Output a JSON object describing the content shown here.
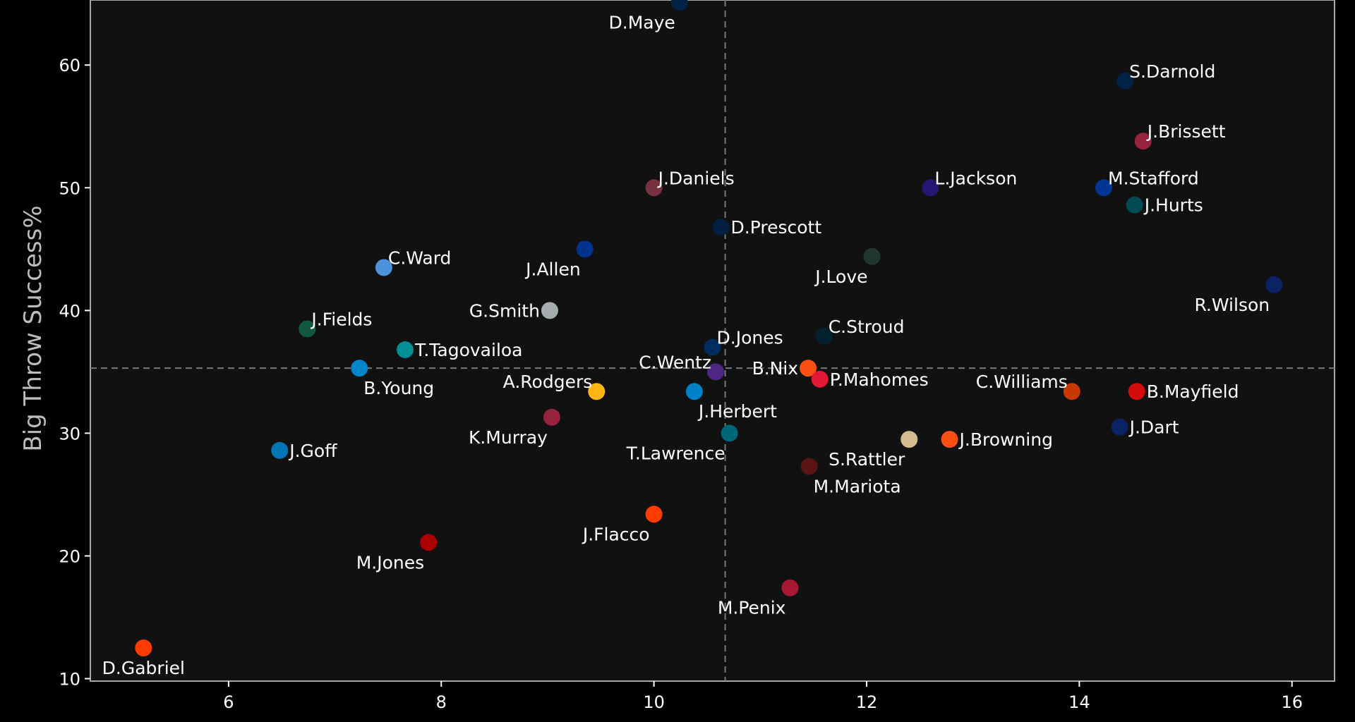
{
  "chart_data": {
    "type": "scatter",
    "title": "",
    "xlabel": "",
    "ylabel": "Big Throw Success%",
    "xlim": [
      4.7,
      16.4
    ],
    "ylim": [
      9.8,
      65.3
    ],
    "xticks": [
      6,
      8,
      10,
      12,
      14,
      16
    ],
    "yticks": [
      10,
      20,
      30,
      40,
      50,
      60
    ],
    "reference_lines": {
      "x": 10.67,
      "y": 35.3
    },
    "grid": false,
    "colors": {
      "background": "#000000",
      "plot_background": "#111111",
      "reference_line": "#777777"
    },
    "points": [
      {
        "label": "D.Maye",
        "x": 10.24,
        "y": 65.1,
        "color": "#002244",
        "label_pos": "bl"
      },
      {
        "label": "S.Darnold",
        "x": 14.43,
        "y": 58.7,
        "color": "#002244",
        "label_pos": "tr"
      },
      {
        "label": "J.Brissett",
        "x": 14.6,
        "y": 53.8,
        "color": "#97233F",
        "label_pos": "tr"
      },
      {
        "label": "J.Daniels",
        "x": 10.0,
        "y": 50.0,
        "color": "#773141",
        "label_pos": "tr"
      },
      {
        "label": "L.Jackson",
        "x": 12.6,
        "y": 50.0,
        "color": "#241773",
        "label_pos": "tr"
      },
      {
        "label": "M.Stafford",
        "x": 14.23,
        "y": 50.0,
        "color": "#003594",
        "label_pos": "tr"
      },
      {
        "label": "J.Hurts",
        "x": 14.52,
        "y": 48.6,
        "color": "#004C54",
        "label_pos": "r"
      },
      {
        "label": "D.Prescott",
        "x": 10.63,
        "y": 46.8,
        "color": "#041E42",
        "label_pos": "r"
      },
      {
        "label": "J.Allen",
        "x": 9.35,
        "y": 45.0,
        "color": "#00338D",
        "label_pos": "bl"
      },
      {
        "label": "J.Love",
        "x": 12.05,
        "y": 44.4,
        "color": "#203731",
        "label_pos": "bl"
      },
      {
        "label": "C.Ward",
        "x": 7.46,
        "y": 43.5,
        "color": "#4B92DB",
        "label_pos": "tr"
      },
      {
        "label": "R.Wilson",
        "x": 15.83,
        "y": 42.1,
        "color": "#0B2265",
        "label_pos": "bl"
      },
      {
        "label": "G.Smith",
        "x": 9.02,
        "y": 40.0,
        "color": "#A5ACAF",
        "label_pos": "l"
      },
      {
        "label": "J.Fields",
        "x": 6.74,
        "y": 38.5,
        "color": "#125740",
        "label_pos": "tr"
      },
      {
        "label": "C.Stroud",
        "x": 11.6,
        "y": 37.9,
        "color": "#03202F",
        "label_pos": "tr"
      },
      {
        "label": "D.Jones",
        "x": 10.55,
        "y": 37.0,
        "color": "#002C5F",
        "label_pos": "tr"
      },
      {
        "label": "T.Tagovailoa",
        "x": 7.66,
        "y": 36.8,
        "color": "#008E97",
        "label_pos": "r"
      },
      {
        "label": "B.Young",
        "x": 7.23,
        "y": 35.3,
        "color": "#0085CA",
        "label_pos": "br"
      },
      {
        "label": "C.Wentz",
        "x": 10.58,
        "y": 35.0,
        "color": "#4F2683",
        "label_pos": "tl"
      },
      {
        "label": "B.Nix",
        "x": 11.45,
        "y": 35.3,
        "color": "#FB4F14",
        "label_pos": "l"
      },
      {
        "label": "P.Mahomes",
        "x": 11.56,
        "y": 34.4,
        "color": "#E31837",
        "label_pos": "r"
      },
      {
        "label": "A.Rodgers",
        "x": 9.46,
        "y": 33.4,
        "color": "#FFB612",
        "label_pos": "tl"
      },
      {
        "label": "J.Herbert",
        "x": 10.38,
        "y": 33.4,
        "color": "#0080C6",
        "label_pos": "br"
      },
      {
        "label": "C.Williams",
        "x": 13.93,
        "y": 33.4,
        "color": "#C83803",
        "label_pos": "tl"
      },
      {
        "label": "B.Mayfield",
        "x": 14.54,
        "y": 33.4,
        "color": "#D50A0A",
        "label_pos": "r"
      },
      {
        "label": "K.Murray",
        "x": 9.04,
        "y": 31.3,
        "color": "#97233F",
        "label_pos": "bl"
      },
      {
        "label": "J.Dart",
        "x": 14.38,
        "y": 30.5,
        "color": "#0B2265",
        "label_pos": "r"
      },
      {
        "label": "T.Lawrence",
        "x": 10.71,
        "y": 30.0,
        "color": "#006778",
        "label_pos": "bl"
      },
      {
        "label": "S.Rattler",
        "x": 12.4,
        "y": 29.5,
        "color": "#D3BC8D",
        "label_pos": "bl"
      },
      {
        "label": "J.Browning",
        "x": 12.78,
        "y": 29.5,
        "color": "#FB4F14",
        "label_pos": "r"
      },
      {
        "label": "J.Goff",
        "x": 6.48,
        "y": 28.6,
        "color": "#0076B6",
        "label_pos": "r"
      },
      {
        "label": "M.Mariota",
        "x": 11.46,
        "y": 27.3,
        "color": "#5A1414",
        "label_pos": "br"
      },
      {
        "label": "J.Flacco",
        "x": 10.0,
        "y": 23.4,
        "color": "#FF3C00",
        "label_pos": "bl"
      },
      {
        "label": "M.Jones",
        "x": 7.88,
        "y": 21.1,
        "color": "#AA0000",
        "label_pos": "bl"
      },
      {
        "label": "M.Penix",
        "x": 11.28,
        "y": 17.4,
        "color": "#A71930",
        "label_pos": "bl"
      },
      {
        "label": "D.Gabriel",
        "x": 5.2,
        "y": 12.5,
        "color": "#FF3C00",
        "label_pos": "bc"
      }
    ]
  }
}
